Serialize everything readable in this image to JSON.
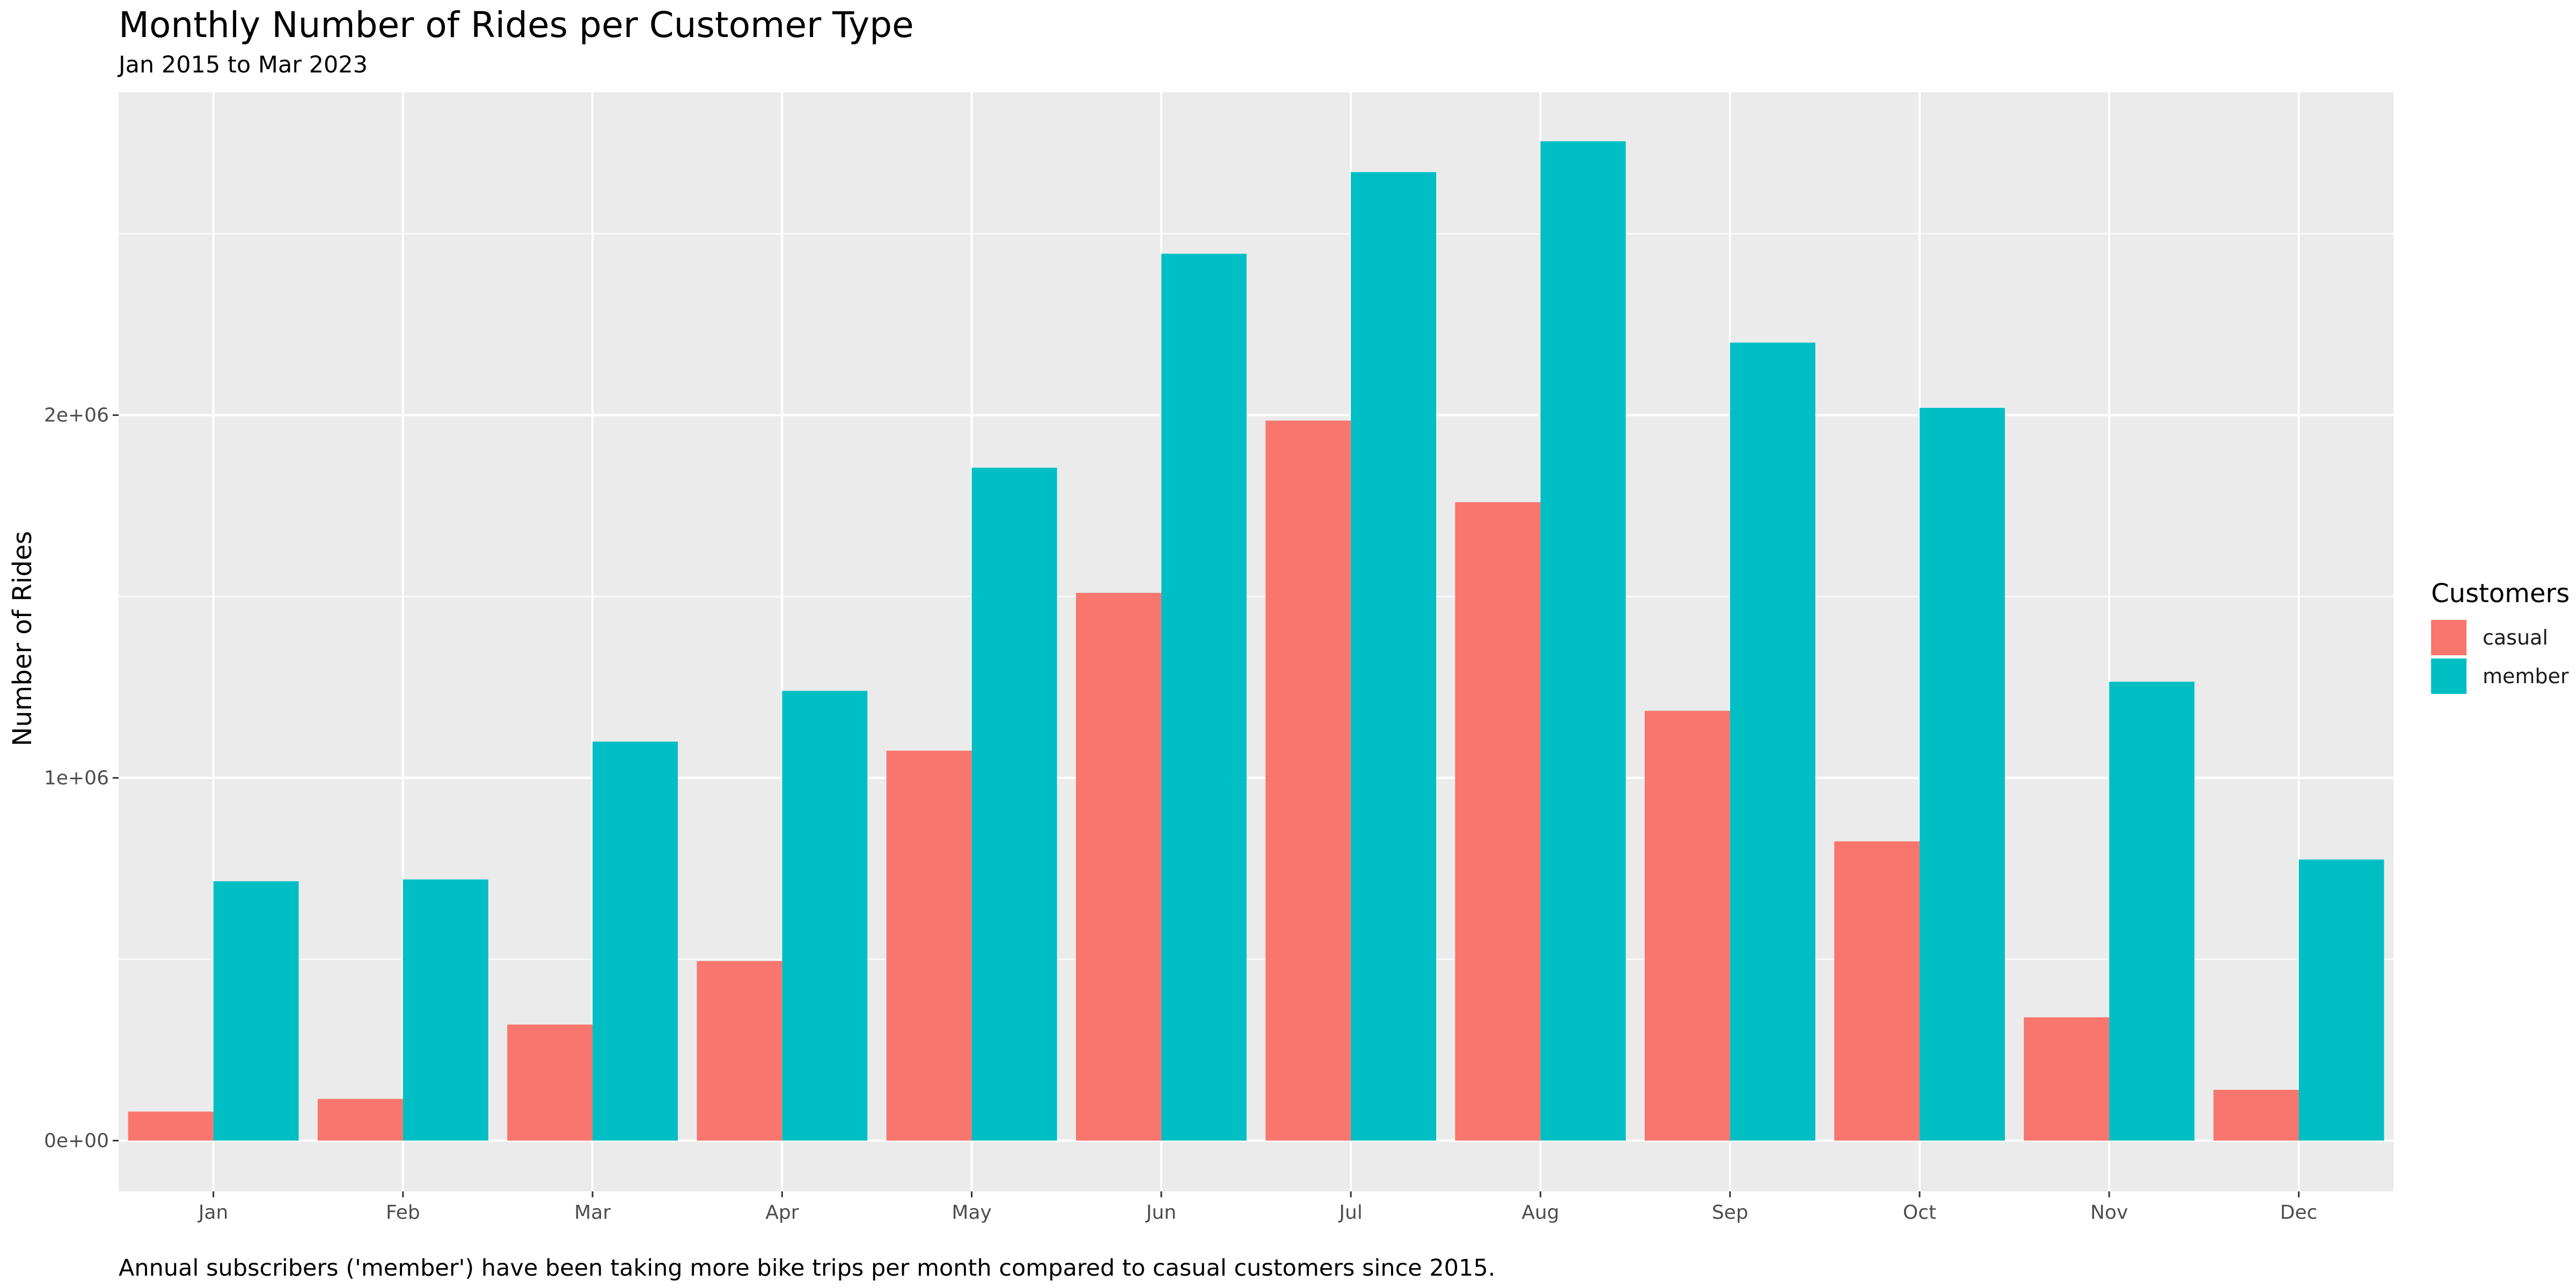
{
  "chart_data": {
    "type": "bar",
    "title": "Monthly Number of Rides per Customer Type",
    "subtitle": "Jan 2015 to Mar 2023",
    "caption": "Annual subscribers ('member') have been taking more bike trips per month compared to casual customers since 2015.",
    "xlabel": "",
    "ylabel": "Number of Rides",
    "categories": [
      "Jan",
      "Feb",
      "Mar",
      "Apr",
      "May",
      "Jun",
      "Jul",
      "Aug",
      "Sep",
      "Oct",
      "Nov",
      "Dec"
    ],
    "series": [
      {
        "name": "casual",
        "color": "#F8766D",
        "values": [
          80000,
          115000,
          320000,
          495000,
          1075000,
          1510000,
          1985000,
          1760000,
          1185000,
          825000,
          340000,
          140000
        ]
      },
      {
        "name": "member",
        "color": "#00BFC4",
        "values": [
          715000,
          720000,
          1100000,
          1240000,
          1855000,
          2445000,
          2670000,
          2755000,
          2200000,
          2020000,
          1265000,
          775000
        ]
      }
    ],
    "ylim": [
      -140000,
      2890000
    ],
    "yticks": [
      0,
      1000000,
      2000000
    ],
    "ytick_labels": [
      "0e+00",
      "1e+06",
      "2e+06"
    ],
    "legend": {
      "title": "Customers",
      "position": "right"
    },
    "grid": true,
    "panel_background": "#EBEBEB"
  }
}
